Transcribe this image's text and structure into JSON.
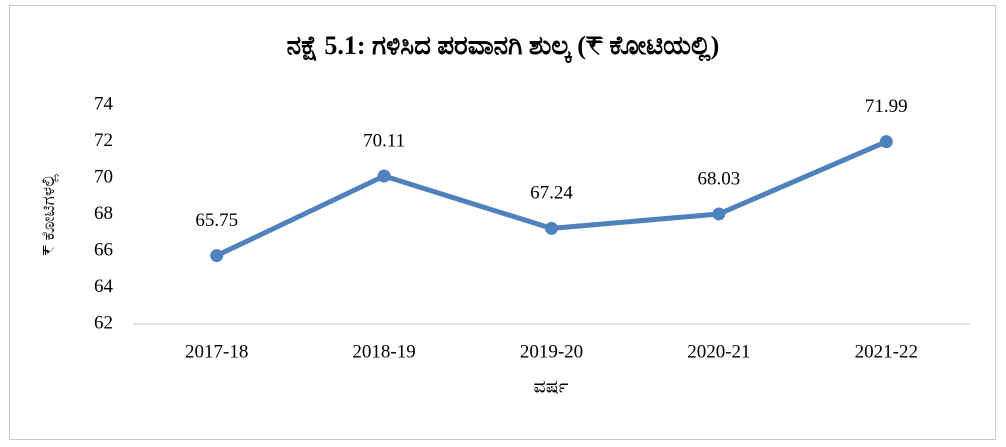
{
  "chart_data": {
    "type": "line",
    "title": "ನಕ್ಷೆ 5.1: ಗಳಿಸಿದ ಪರವಾನಗಿ ಶುಲ್ಕ (₹ ಕೋಟಿಯಲ್ಲಿ)",
    "x_label": "ವರ್ಷ",
    "y_label": "₹ ಕೋಟಿಗಳಲ್ಲಿ",
    "categories": [
      "2017-18",
      "2018-19",
      "2019-20",
      "2020-21",
      "2021-22"
    ],
    "series": [
      {
        "name": "ಗಳಿಸಿದ ಪರವಾನಗಿ ಶುಲ್ಕ",
        "color": "#4f81bd",
        "values": [
          65.75,
          70.11,
          67.24,
          68.03,
          71.99
        ]
      }
    ],
    "ylim": [
      62,
      74
    ],
    "yticks": [
      62,
      64,
      66,
      68,
      70,
      72,
      74
    ],
    "grid": false
  }
}
